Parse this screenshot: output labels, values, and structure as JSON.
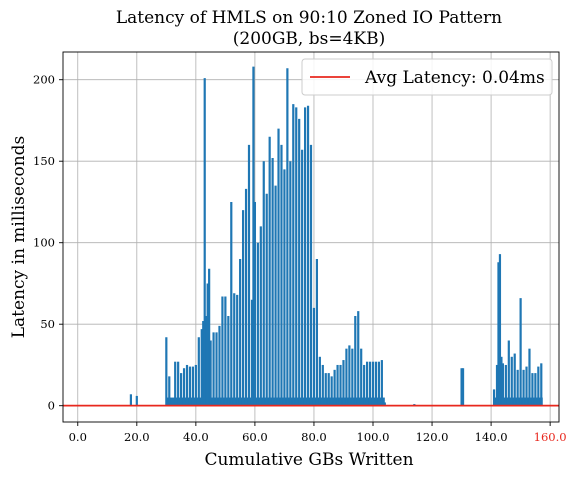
{
  "chart_data": {
    "type": "line",
    "title": "Latency of HMLS on 90:10 Zoned IO Pattern",
    "subtitle": "(200GB, bs=4KB)",
    "xlabel": "Cumulative GBs Written",
    "ylabel": "Latency in milliseconds",
    "xlim": [
      -5,
      163
    ],
    "ylim": [
      -10,
      217
    ],
    "grid": true,
    "legend_position": "top-right",
    "x_ticks": [
      {
        "value": 0,
        "label": "0.0",
        "color": "#000000"
      },
      {
        "value": 20,
        "label": "20.0",
        "color": "#000000"
      },
      {
        "value": 40,
        "label": "40.0",
        "color": "#000000"
      },
      {
        "value": 60,
        "label": "60.0",
        "color": "#000000"
      },
      {
        "value": 80,
        "label": "80.0",
        "color": "#000000"
      },
      {
        "value": 100,
        "label": "100.0",
        "color": "#000000"
      },
      {
        "value": 120,
        "label": "120.0",
        "color": "#000000"
      },
      {
        "value": 140,
        "label": "140.0",
        "color": "#000000"
      },
      {
        "value": 160,
        "label": "160.0",
        "color": "#e8281e"
      }
    ],
    "y_ticks": [
      {
        "value": 0,
        "label": "0"
      },
      {
        "value": 50,
        "label": "50"
      },
      {
        "value": 100,
        "label": "100"
      },
      {
        "value": 150,
        "label": "150"
      },
      {
        "value": 200,
        "label": "200"
      }
    ],
    "series": [
      {
        "color": "#1f77b4",
        "baseline": 0,
        "fill_x": [
          [
            30,
            104
          ],
          [
            141,
            157.5
          ]
        ],
        "fill_y": 5,
        "peaks": [
          [
            18,
            7
          ],
          [
            20,
            6
          ],
          [
            30,
            42
          ],
          [
            31,
            18
          ],
          [
            33,
            27
          ],
          [
            34,
            27
          ],
          [
            35,
            20
          ],
          [
            36,
            23
          ],
          [
            37,
            25
          ],
          [
            38,
            24
          ],
          [
            39,
            24
          ],
          [
            40,
            25
          ],
          [
            41,
            42
          ],
          [
            42,
            47
          ],
          [
            42.5,
            52
          ],
          [
            43,
            201
          ],
          [
            43.5,
            55
          ],
          [
            44,
            75
          ],
          [
            44.5,
            84
          ],
          [
            45,
            40
          ],
          [
            46,
            45
          ],
          [
            47,
            45
          ],
          [
            48,
            49
          ],
          [
            49,
            67
          ],
          [
            50,
            67
          ],
          [
            51,
            55
          ],
          [
            52,
            125
          ],
          [
            53,
            69
          ],
          [
            54,
            68
          ],
          [
            55,
            90
          ],
          [
            56,
            120
          ],
          [
            57,
            133
          ],
          [
            58,
            160
          ],
          [
            59,
            65
          ],
          [
            59.5,
            208
          ],
          [
            60,
            125
          ],
          [
            61,
            100
          ],
          [
            62,
            110
          ],
          [
            63,
            150
          ],
          [
            64,
            130
          ],
          [
            65,
            165
          ],
          [
            66,
            152
          ],
          [
            67,
            135
          ],
          [
            68,
            170
          ],
          [
            69,
            160
          ],
          [
            70,
            145
          ],
          [
            71,
            207
          ],
          [
            72,
            150
          ],
          [
            73,
            185
          ],
          [
            74,
            183
          ],
          [
            75,
            176
          ],
          [
            76,
            157
          ],
          [
            77,
            183
          ],
          [
            78,
            184
          ],
          [
            79,
            160
          ],
          [
            80,
            60
          ],
          [
            81,
            90
          ],
          [
            82,
            30
          ],
          [
            83,
            25
          ],
          [
            84,
            20
          ],
          [
            85,
            20
          ],
          [
            86,
            18
          ],
          [
            87,
            22
          ],
          [
            88,
            25
          ],
          [
            89,
            25
          ],
          [
            90,
            28
          ],
          [
            91,
            35
          ],
          [
            92,
            37
          ],
          [
            93,
            35
          ],
          [
            94,
            55
          ],
          [
            95,
            58
          ],
          [
            96,
            35
          ],
          [
            97,
            25
          ],
          [
            98,
            27
          ],
          [
            99,
            27
          ],
          [
            100,
            27
          ],
          [
            101,
            27
          ],
          [
            102,
            27
          ],
          [
            103,
            28
          ],
          [
            104,
            2
          ],
          [
            114,
            1
          ],
          [
            130,
            23
          ],
          [
            130.5,
            23
          ],
          [
            141,
            10
          ],
          [
            142,
            25
          ],
          [
            142.5,
            88
          ],
          [
            143,
            93
          ],
          [
            143.5,
            30
          ],
          [
            144,
            26
          ],
          [
            145,
            25
          ],
          [
            146,
            40
          ],
          [
            147,
            30
          ],
          [
            148,
            32
          ],
          [
            149,
            22
          ],
          [
            150,
            66
          ],
          [
            151,
            22
          ],
          [
            152,
            24
          ],
          [
            153,
            35
          ],
          [
            154,
            20
          ],
          [
            155,
            20
          ],
          [
            156,
            24
          ],
          [
            157,
            26
          ]
        ]
      },
      {
        "name": "Avg Latency: 0.04ms",
        "color": "#e8281e",
        "values": [
          0.04
        ]
      }
    ]
  }
}
